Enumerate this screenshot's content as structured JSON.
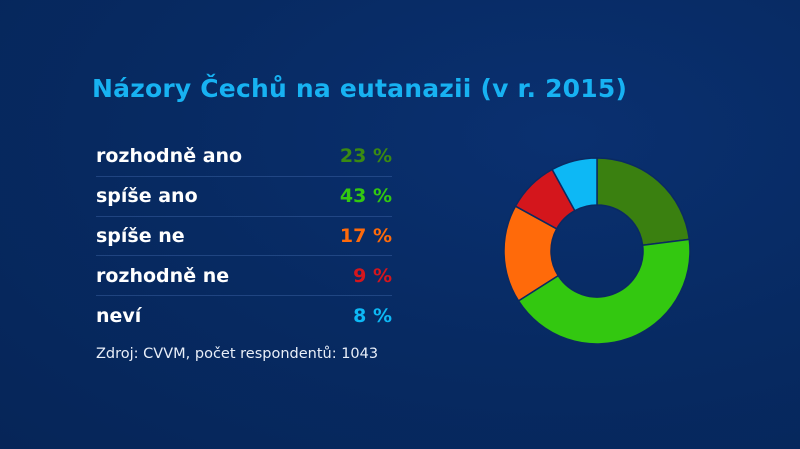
{
  "chart_data": {
    "type": "pie",
    "variant": "donut",
    "title": "Názory Čechů na eutanazii (v r. 2015)",
    "categories": [
      "rozhodně ano",
      "spíše ano",
      "spíše ne",
      "rozhodně ne",
      "neví"
    ],
    "values": [
      23,
      43,
      17,
      9,
      8
    ],
    "value_labels": [
      "23 %",
      "43 %",
      "17 %",
      "9 %",
      "8 %"
    ],
    "colors": [
      "#3a8010",
      "#33c810",
      "#ff6a0a",
      "#d4161c",
      "#0db8f5"
    ],
    "source": "Zdroj: CVVM, počet respondentů: 1043"
  }
}
